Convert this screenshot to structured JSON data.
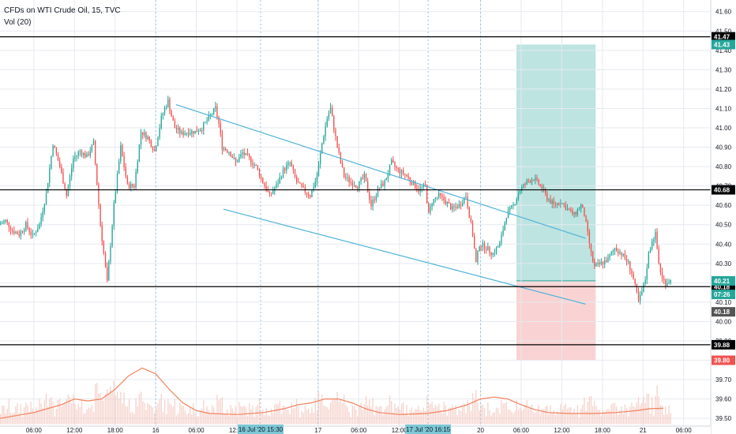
{
  "header": {
    "title": "CFDs on WTI Crude Oil, 15, TVC",
    "volume_label": "Vol (20)"
  },
  "colors": {
    "up": "#26a69a",
    "down": "#ef5350",
    "channel": "#4fb3d9",
    "volume_ma": "#f4805c",
    "volume_bar": "#f4c8c0",
    "profit_zone": "#b2dfdb",
    "loss_zone": "#f8cbcb",
    "grid": "#e6e9ef",
    "session_line": "#8fc4e4"
  },
  "chart_data": {
    "type": "candlestick",
    "symbol": "CFDs on WTI Crude Oil",
    "timeframe": "15",
    "source": "TVC",
    "y_axis": {
      "range": [
        39.46,
        41.66
      ],
      "ticks": [
        "41.60",
        "41.50",
        "41.40",
        "41.30",
        "41.20",
        "41.10",
        "41.00",
        "40.90",
        "40.80",
        "40.70",
        "40.60",
        "40.50",
        "40.40",
        "40.30",
        "40.20",
        "40.10",
        "40.00",
        "39.90",
        "39.80",
        "39.70",
        "39.60",
        "39.50"
      ]
    },
    "x_axis": {
      "ticks": [
        {
          "label": "06:00",
          "t": -18
        },
        {
          "label": "12:00",
          "t": -12
        },
        {
          "label": "18:00",
          "t": -6
        },
        {
          "label": "16",
          "t": 0
        },
        {
          "label": "06:00",
          "t": 6
        },
        {
          "label": "12:00",
          "t": 12
        },
        {
          "label": "17",
          "t": 24
        },
        {
          "label": "06:00",
          "t": 30
        },
        {
          "label": "12:00",
          "t": 36
        },
        {
          "label": "20",
          "t": 48
        },
        {
          "label": "06:00",
          "t": 54
        },
        {
          "label": "12:00",
          "t": 60
        },
        {
          "label": "18:00",
          "t": 66
        },
        {
          "label": "21",
          "t": 72
        },
        {
          "label": "06:00",
          "t": 78
        }
      ],
      "range": [
        -23,
        82
      ],
      "cursor_labels": [
        {
          "label": "16 Jul '20  15:30",
          "t": 15.5
        },
        {
          "label": "17 Jul '20  16:15",
          "t": 40.25
        }
      ]
    },
    "session_lines": [
      0,
      15.5,
      24,
      40.25,
      48
    ],
    "horizontal_levels": [
      {
        "value": 41.47,
        "label": "41.47"
      },
      {
        "value": 40.68,
        "label": "40.68"
      },
      {
        "value": 40.18,
        "label": "40.18"
      },
      {
        "value": 39.88,
        "label": "39.88"
      }
    ],
    "price_flags": [
      {
        "value": 41.43,
        "label": "41.43",
        "color": "#26a69a"
      },
      {
        "value": 40.21,
        "label": "40.21",
        "color": "#26a69a"
      },
      {
        "value": 40.14,
        "label": "07:26",
        "color": "#26a69a"
      },
      {
        "value": 40.05,
        "label": "40.18",
        "color": "#555555"
      },
      {
        "value": 39.8,
        "label": "39.80",
        "color": "#ef5350"
      }
    ],
    "position": {
      "entry": 40.21,
      "target": 41.43,
      "stop": 39.8,
      "t_start": 53.3,
      "t_end": 65
    },
    "channel": {
      "upper": [
        [
          3,
          41.12
        ],
        [
          63.5,
          40.43
        ]
      ],
      "lower": [
        [
          10,
          40.58
        ],
        [
          63.5,
          40.09
        ]
      ]
    },
    "price_points": [
      [
        -23,
        40.5
      ],
      [
        -22,
        40.52
      ],
      [
        -21,
        40.47
      ],
      [
        -20,
        40.45
      ],
      [
        -19,
        40.5
      ],
      [
        -18,
        40.44
      ],
      [
        -17,
        40.5
      ],
      [
        -16,
        40.66
      ],
      [
        -15,
        40.92
      ],
      [
        -14,
        40.8
      ],
      [
        -13,
        40.65
      ],
      [
        -12,
        40.84
      ],
      [
        -11,
        40.88
      ],
      [
        -10,
        40.85
      ],
      [
        -9,
        40.92
      ],
      [
        -8,
        40.5
      ],
      [
        -7,
        40.2
      ],
      [
        -6,
        40.6
      ],
      [
        -5,
        40.9
      ],
      [
        -4,
        40.7
      ],
      [
        -3,
        40.7
      ],
      [
        -2,
        40.98
      ],
      [
        -1,
        40.95
      ],
      [
        0,
        40.88
      ],
      [
        0.5,
        40.96
      ],
      [
        1,
        41.05
      ],
      [
        1.5,
        41.1
      ],
      [
        2,
        41.14
      ],
      [
        2.5,
        41.06
      ],
      [
        3,
        41.0
      ],
      [
        4,
        40.97
      ],
      [
        5,
        40.98
      ],
      [
        6,
        40.98
      ],
      [
        7,
        41.0
      ],
      [
        8,
        41.05
      ],
      [
        9,
        41.1
      ],
      [
        9.5,
        41.02
      ],
      [
        10,
        40.9
      ],
      [
        11,
        40.88
      ],
      [
        12,
        40.82
      ],
      [
        13,
        40.87
      ],
      [
        14,
        40.84
      ],
      [
        15,
        40.8
      ],
      [
        16,
        40.72
      ],
      [
        17,
        40.65
      ],
      [
        18,
        40.7
      ],
      [
        19,
        40.78
      ],
      [
        20,
        40.82
      ],
      [
        21,
        40.72
      ],
      [
        22,
        40.68
      ],
      [
        23,
        40.65
      ],
      [
        24,
        40.75
      ],
      [
        24.8,
        40.93
      ],
      [
        25.5,
        41.05
      ],
      [
        26,
        41.1
      ],
      [
        26.5,
        41.0
      ],
      [
        27,
        40.9
      ],
      [
        27.5,
        40.82
      ],
      [
        28,
        40.75
      ],
      [
        29,
        40.72
      ],
      [
        30,
        40.7
      ],
      [
        31,
        40.75
      ],
      [
        32,
        40.6
      ],
      [
        33,
        40.68
      ],
      [
        34,
        40.72
      ],
      [
        35,
        40.82
      ],
      [
        36,
        40.78
      ],
      [
        37,
        40.76
      ],
      [
        38,
        40.72
      ],
      [
        39,
        40.68
      ],
      [
        40,
        40.7
      ],
      [
        40.5,
        40.55
      ],
      [
        41,
        40.62
      ],
      [
        42,
        40.65
      ],
      [
        43,
        40.62
      ],
      [
        44,
        40.58
      ],
      [
        45,
        40.6
      ],
      [
        46,
        40.65
      ],
      [
        47,
        40.45
      ],
      [
        47.5,
        40.3
      ],
      [
        48,
        40.4
      ],
      [
        49,
        40.38
      ],
      [
        50,
        40.35
      ],
      [
        51,
        40.4
      ],
      [
        52,
        40.55
      ],
      [
        53,
        40.6
      ],
      [
        54,
        40.68
      ],
      [
        55,
        40.72
      ],
      [
        56,
        40.74
      ],
      [
        57,
        40.7
      ],
      [
        58,
        40.64
      ],
      [
        59,
        40.6
      ],
      [
        60,
        40.62
      ],
      [
        61,
        40.58
      ],
      [
        62,
        40.55
      ],
      [
        63,
        40.6
      ],
      [
        63.5,
        40.55
      ],
      [
        64,
        40.45
      ],
      [
        64.5,
        40.35
      ],
      [
        65,
        40.28
      ],
      [
        66,
        40.3
      ],
      [
        67,
        40.32
      ],
      [
        68,
        40.38
      ],
      [
        69,
        40.35
      ],
      [
        70,
        40.3
      ],
      [
        70.5,
        40.25
      ],
      [
        71,
        40.18
      ],
      [
        71.5,
        40.1
      ],
      [
        72,
        40.15
      ],
      [
        72.5,
        40.22
      ],
      [
        73,
        40.35
      ],
      [
        73.5,
        40.42
      ],
      [
        74,
        40.45
      ],
      [
        74.5,
        40.3
      ],
      [
        75,
        40.22
      ],
      [
        75.5,
        40.2
      ],
      [
        76,
        40.21
      ]
    ],
    "volume_ma_points": [
      [
        -23,
        39.5
      ],
      [
        -18,
        39.53
      ],
      [
        -14,
        39.57
      ],
      [
        -12,
        39.6
      ],
      [
        -10,
        39.59
      ],
      [
        -8,
        39.6
      ],
      [
        -6,
        39.65
      ],
      [
        -4,
        39.72
      ],
      [
        -2,
        39.76
      ],
      [
        0,
        39.73
      ],
      [
        2,
        39.65
      ],
      [
        4,
        39.58
      ],
      [
        6,
        39.54
      ],
      [
        8,
        39.525
      ],
      [
        12,
        39.52
      ],
      [
        16,
        39.53
      ],
      [
        19,
        39.55
      ],
      [
        21,
        39.57
      ],
      [
        23,
        39.58
      ],
      [
        25,
        39.6
      ],
      [
        27,
        39.6
      ],
      [
        29,
        39.58
      ],
      [
        31,
        39.55
      ],
      [
        33,
        39.53
      ],
      [
        36,
        39.52
      ],
      [
        40,
        39.525
      ],
      [
        43,
        39.54
      ],
      [
        46,
        39.57
      ],
      [
        48,
        39.6
      ],
      [
        50,
        39.61
      ],
      [
        52,
        39.6
      ],
      [
        54,
        39.57
      ],
      [
        56,
        39.545
      ],
      [
        58,
        39.53
      ],
      [
        61,
        39.525
      ],
      [
        65,
        39.525
      ],
      [
        68,
        39.53
      ],
      [
        71,
        39.54
      ],
      [
        73,
        39.55
      ],
      [
        75,
        39.552
      ]
    ]
  }
}
